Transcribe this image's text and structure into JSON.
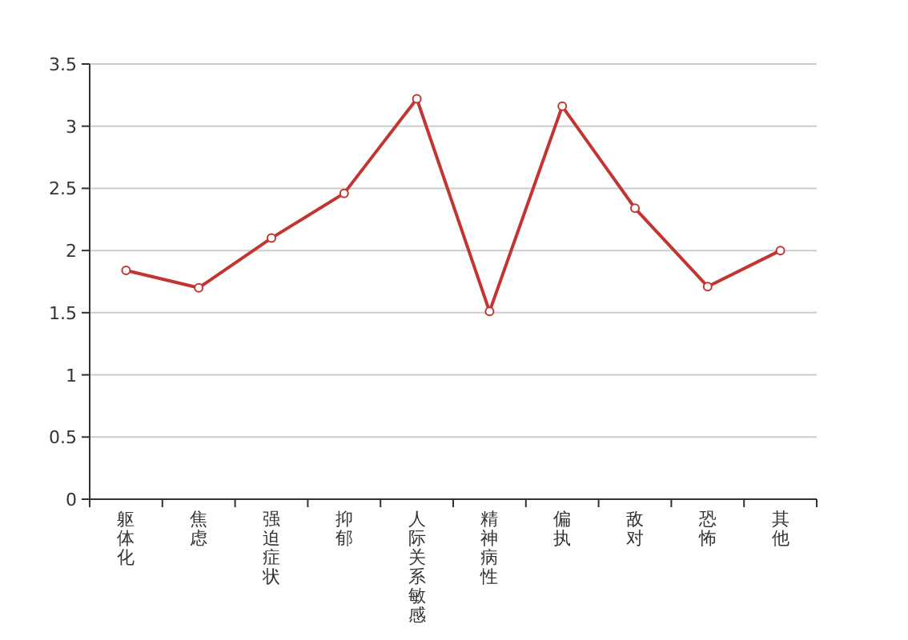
{
  "chart_data": {
    "type": "line",
    "categories": [
      "躯体化",
      "焦虑",
      "强迫症状",
      "抑郁",
      "人际关系敏感",
      "精神病性",
      "偏执",
      "敌对",
      "恐怖",
      "其他"
    ],
    "series": [
      {
        "color": "#c23531",
        "values": [
          1.84,
          1.7,
          2.1,
          2.46,
          3.22,
          1.51,
          3.16,
          2.34,
          1.71,
          2.0
        ]
      }
    ],
    "ylim": [
      0,
      3.5
    ],
    "yticks": [
      0,
      0.5,
      1,
      1.5,
      2,
      2.5,
      3,
      3.5
    ],
    "grid": "y",
    "marker": "circle",
    "line_style": "solid"
  }
}
